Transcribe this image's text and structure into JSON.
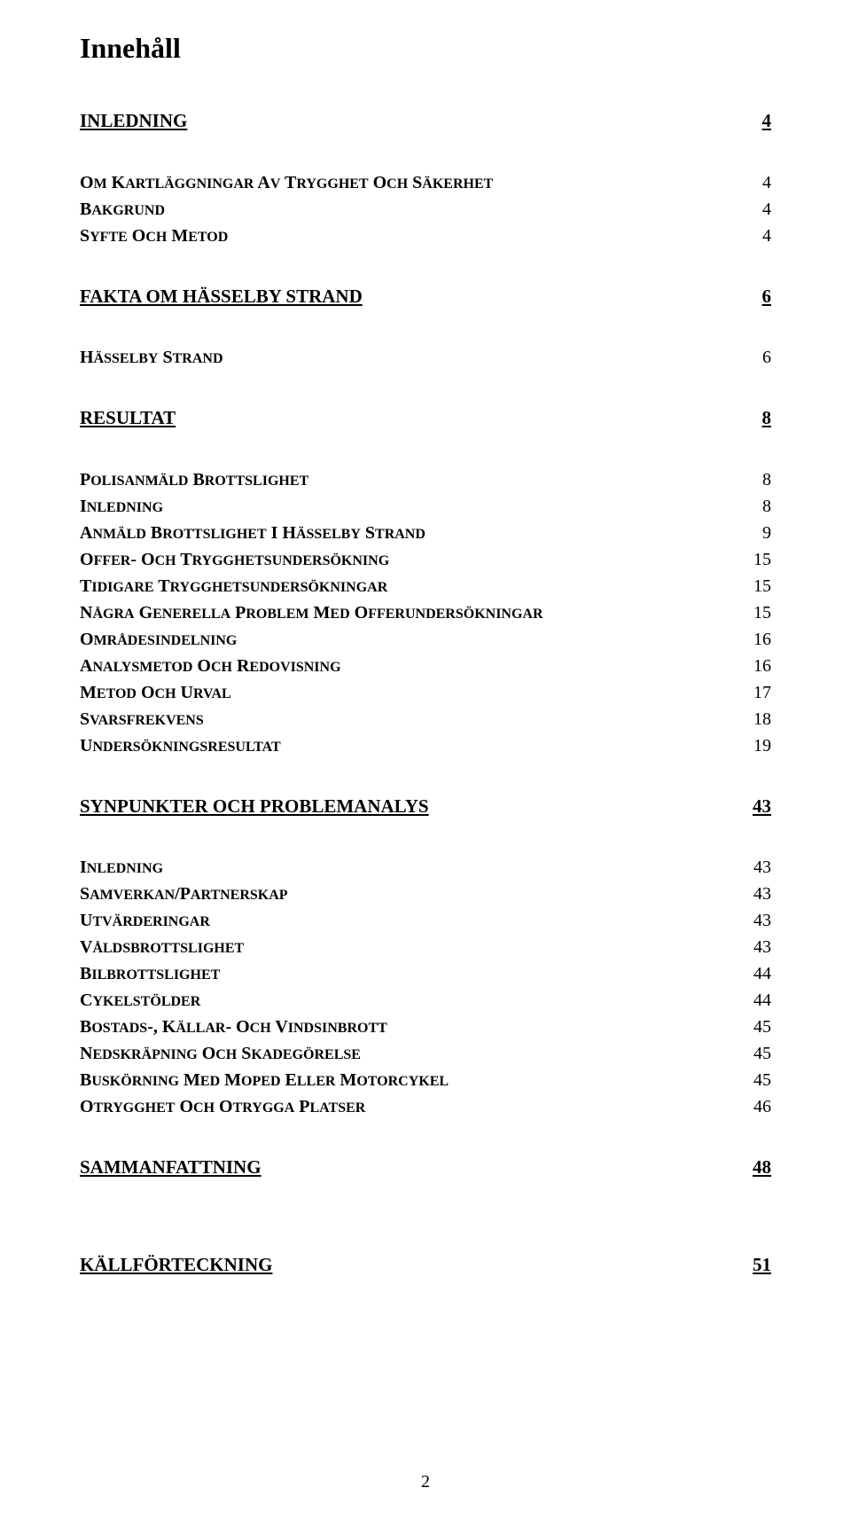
{
  "document": {
    "title": "Innehåll",
    "page_number": "2",
    "colors": {
      "background": "#ffffff",
      "text": "#000000"
    },
    "typography": {
      "font_family": "Times New Roman",
      "title_fontsize_pt": 24,
      "l1_fontsize_pt": 16,
      "l2_fontsize_pt": 15,
      "l1_weight": "bold",
      "l2_weight": "bold",
      "l2_style": "small-caps",
      "l1_underline": true
    }
  },
  "toc": [
    {
      "level": 1,
      "label": "INLEDNING",
      "page": "4",
      "children": [
        {
          "level": 2,
          "label": "OM KARTLÄGGNINGAR AV TRYGGHET OCH SÄKERHET",
          "page": "4"
        },
        {
          "level": 2,
          "label": "BAKGRUND",
          "page": "4"
        },
        {
          "level": 2,
          "label": "SYFTE OCH METOD",
          "page": "4"
        }
      ]
    },
    {
      "level": 1,
      "label": "FAKTA OM HÄSSELBY STRAND",
      "page": "6",
      "children": [
        {
          "level": 2,
          "label": "HÄSSELBY STRAND",
          "page": "6"
        }
      ]
    },
    {
      "level": 1,
      "label": "RESULTAT",
      "page": "8",
      "children": [
        {
          "level": 2,
          "label": "POLISANMÄLD BROTTSLIGHET",
          "page": "8"
        },
        {
          "level": 2,
          "label": "INLEDNING",
          "page": "8"
        },
        {
          "level": 2,
          "label": "ANMÄLD BROTTSLIGHET I HÄSSELBY STRAND",
          "page": "9"
        },
        {
          "level": 2,
          "label": "OFFER- OCH TRYGGHETSUNDERSÖKNING",
          "page": "15"
        },
        {
          "level": 2,
          "label": "TIDIGARE TRYGGHETSUNDERSÖKNINGAR",
          "page": "15"
        },
        {
          "level": 2,
          "label": "NÅGRA GENERELLA PROBLEM MED OFFERUNDERSÖKNINGAR",
          "page": "15"
        },
        {
          "level": 2,
          "label": "OMRÅDESINDELNING",
          "page": "16"
        },
        {
          "level": 2,
          "label": "ANALYSMETOD OCH REDOVISNING",
          "page": "16"
        },
        {
          "level": 2,
          "label": "METOD OCH URVAL",
          "page": "17"
        },
        {
          "level": 2,
          "label": "SVARSFREKVENS",
          "page": "18"
        },
        {
          "level": 2,
          "label": "UNDERSÖKNINGSRESULTAT",
          "page": "19"
        }
      ]
    },
    {
      "level": 1,
      "label": "SYNPUNKTER OCH PROBLEMANALYS",
      "page": "43",
      "children": [
        {
          "level": 2,
          "label": "INLEDNING",
          "page": "43"
        },
        {
          "level": 2,
          "label": "SAMVERKAN/PARTNERSKAP",
          "page": "43"
        },
        {
          "level": 2,
          "label": "UTVÄRDERINGAR",
          "page": "43"
        },
        {
          "level": 2,
          "label": "VÅLDSBROTTSLIGHET",
          "page": "43"
        },
        {
          "level": 2,
          "label": "BILBROTTSLIGHET",
          "page": "44"
        },
        {
          "level": 2,
          "label": "CYKELSTÖLDER",
          "page": "44"
        },
        {
          "level": 2,
          "label": "BOSTADS-, KÄLLAR- OCH VINDSINBROTT",
          "page": "45"
        },
        {
          "level": 2,
          "label": "NEDSKRÄPNING OCH SKADEGÖRELSE",
          "page": "45"
        },
        {
          "level": 2,
          "label": "BUSKÖRNING MED MOPED ELLER MOTORCYKEL",
          "page": "45"
        },
        {
          "level": 2,
          "label": "OTRYGGHET OCH OTRYGGA PLATSER",
          "page": "46"
        }
      ]
    },
    {
      "level": 1,
      "label": "SAMMANFATTNING",
      "page": "48",
      "children": []
    },
    {
      "level": 1,
      "label": "KÄLLFÖRTECKNING",
      "page": "51",
      "children": []
    }
  ]
}
